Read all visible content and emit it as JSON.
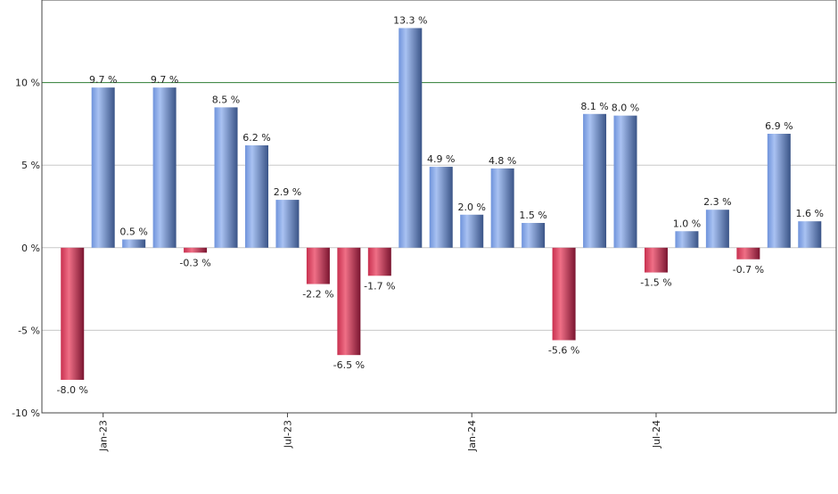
{
  "chart_data": {
    "type": "bar",
    "categories": [
      null,
      "Jan-23",
      null,
      null,
      null,
      null,
      null,
      "Jul-23",
      null,
      null,
      null,
      null,
      null,
      "Jan-24",
      null,
      null,
      null,
      null,
      null,
      "Jul-24",
      null,
      null,
      null,
      null,
      null
    ],
    "values": [
      -8.0,
      9.7,
      0.5,
      9.7,
      -0.3,
      8.5,
      6.2,
      2.9,
      -2.2,
      -6.5,
      -1.7,
      13.3,
      4.9,
      2.0,
      4.8,
      1.5,
      -5.6,
      8.1,
      8.0,
      -1.5,
      1.0,
      2.3,
      -0.7,
      6.9,
      1.6
    ],
    "value_labels": [
      "-8.0 %",
      "9.7 %",
      "0.5 %",
      "9.7 %",
      "-0.3 %",
      "8.5 %",
      "6.2 %",
      "2.9 %",
      "-2.2 %",
      "-6.5 %",
      "-1.7 %",
      "13.3 %",
      "4.9 %",
      "2.0 %",
      "4.8 %",
      "1.5 %",
      "-5.6 %",
      "8.1 %",
      "8.0 %",
      "-1.5 %",
      "1.0 %",
      "2.3 %",
      "-0.7 %",
      "6.9 %",
      "1.6 %"
    ],
    "positive_color": "#6f93db",
    "negative_color": "#c8304f",
    "ylim": [
      -10,
      15
    ],
    "yticks": [
      {
        "value": -10,
        "label": "-10 %"
      },
      {
        "value": -5,
        "label": "-5 %"
      },
      {
        "value": 0,
        "label": "0 %"
      },
      {
        "value": 5,
        "label": "5 %"
      },
      {
        "value": 10,
        "label": "10 %"
      }
    ],
    "grid": true,
    "reference_line": {
      "value": 10,
      "color": "#2e7d32"
    }
  }
}
